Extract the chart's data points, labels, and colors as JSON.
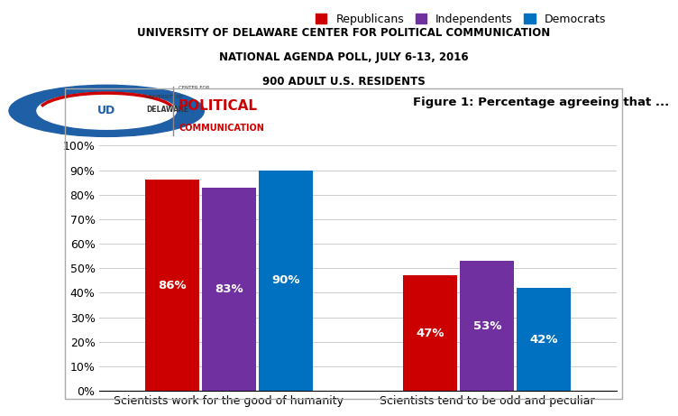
{
  "title_line1": "UNIVERSITY OF DELAWARE CENTER FOR POLITICAL COMMUNICATION",
  "title_line2": "NATIONAL AGENDA POLL, JULY 6-13, 2016",
  "title_line3": "900 ADULT U.S. RESIDENTS",
  "figure_label": "Figure 1: Percentage agreeing that ...",
  "groups": [
    "Scientists work for the good of humanity",
    "Scientists tend to be odd and peculiar"
  ],
  "categories": [
    "Republicans",
    "Independents",
    "Democrats"
  ],
  "values": [
    [
      86,
      83,
      90
    ],
    [
      47,
      53,
      42
    ]
  ],
  "bar_colors": [
    "#cc0000",
    "#7030a0",
    "#0070c0"
  ],
  "bar_width": 0.22,
  "ylim": [
    0,
    100
  ],
  "yticks": [
    0,
    10,
    20,
    30,
    40,
    50,
    60,
    70,
    80,
    90,
    100
  ],
  "ytick_labels": [
    "0%",
    "10%",
    "20%",
    "30%",
    "40%",
    "50%",
    "60%",
    "70%",
    "80%",
    "90%",
    "100%"
  ],
  "label_fontsize": 9,
  "value_fontsize": 9.5,
  "legend_fontsize": 9,
  "title_fontsize": 8.5,
  "background_color": "#ffffff",
  "group_label_fontsize": 9,
  "logo_blue": "#1f5fa6",
  "logo_red": "#cc0000",
  "logo_dark": "#333333",
  "separator_color": "#888888",
  "grid_color": "#cccccc",
  "border_color": "#aaaaaa"
}
